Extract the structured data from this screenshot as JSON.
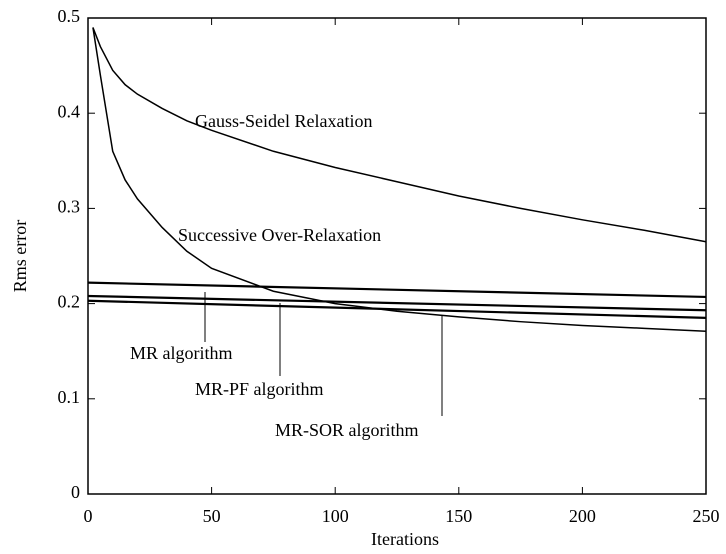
{
  "chart_data": {
    "type": "line",
    "x_label": "Iterations",
    "y_label": "Rms error",
    "xlim": [
      0,
      250
    ],
    "ylim": [
      0,
      0.5
    ],
    "xticks": [
      0,
      50,
      100,
      150,
      200,
      250
    ],
    "yticks": [
      0,
      0.1,
      0.2,
      0.3,
      0.4,
      0.5
    ],
    "series": [
      {
        "name": "Gauss-Seidel Relaxation",
        "color": "#000000",
        "x": [
          2,
          5,
          10,
          15,
          20,
          30,
          40,
          50,
          75,
          100,
          125,
          150,
          175,
          200,
          225,
          250
        ],
        "values": [
          0.49,
          0.47,
          0.445,
          0.43,
          0.42,
          0.405,
          0.392,
          0.382,
          0.36,
          0.343,
          0.328,
          0.313,
          0.3,
          0.288,
          0.277,
          0.265
        ]
      },
      {
        "name": "Successive Over-Relaxation",
        "color": "#000000",
        "x": [
          2,
          5,
          10,
          15,
          20,
          30,
          40,
          50,
          75,
          100,
          125,
          150,
          175,
          200,
          225,
          250
        ],
        "values": [
          0.49,
          0.44,
          0.36,
          0.33,
          0.31,
          0.28,
          0.255,
          0.237,
          0.213,
          0.2,
          0.192,
          0.186,
          0.181,
          0.177,
          0.174,
          0.171
        ]
      },
      {
        "name": "MR algorithm",
        "color": "#000000",
        "x": [
          0,
          250
        ],
        "values": [
          0.222,
          0.207
        ]
      },
      {
        "name": "MR-PF algorithm",
        "color": "#000000",
        "x": [
          0,
          250
        ],
        "values": [
          0.208,
          0.193
        ]
      },
      {
        "name": "MR-SOR algorithm",
        "color": "#000000",
        "x": [
          0,
          250
        ],
        "values": [
          0.203,
          0.185
        ]
      }
    ]
  }
}
